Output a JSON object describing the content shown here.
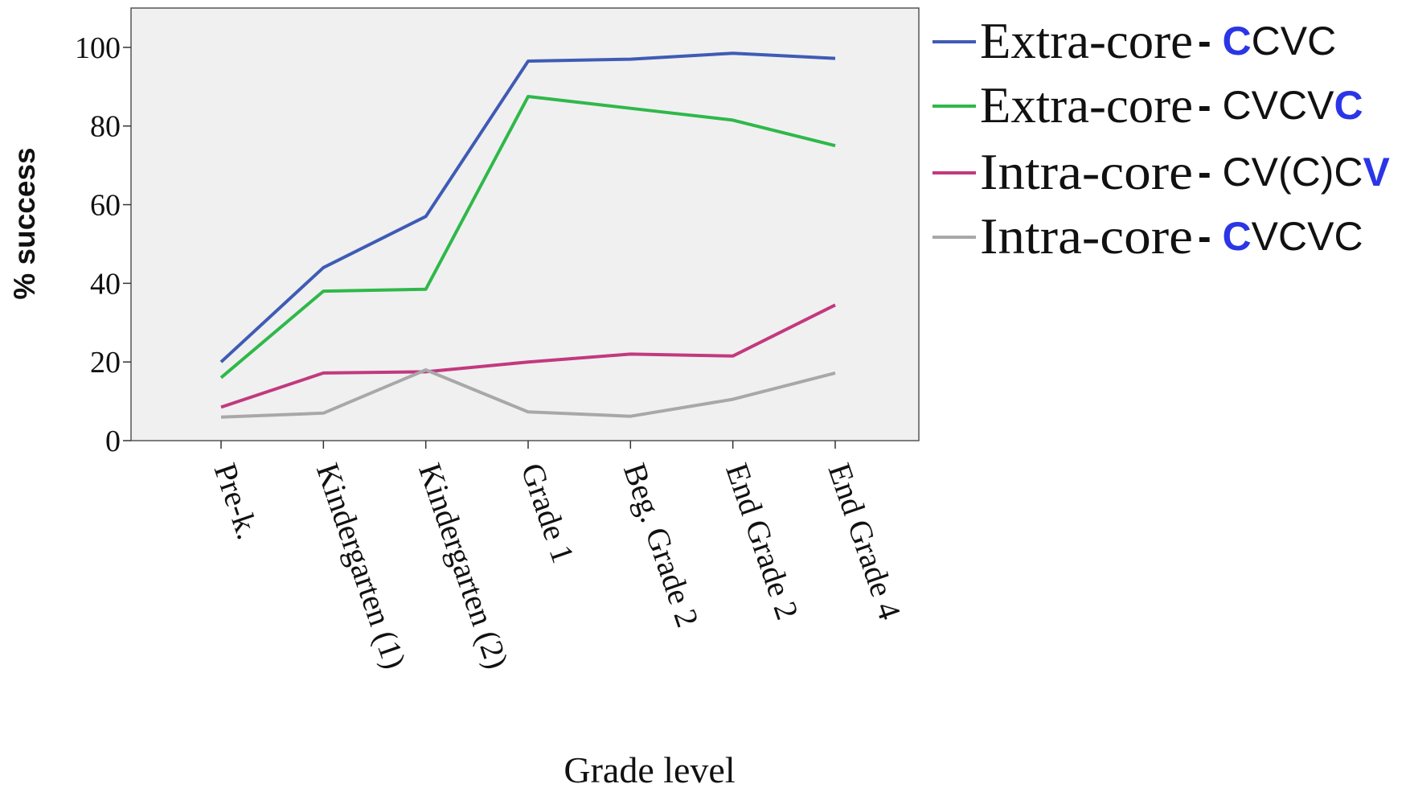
{
  "chart_data": {
    "type": "line",
    "title": "",
    "xlabel": "Grade level",
    "ylabel": "% success",
    "ylim": [
      0,
      110
    ],
    "yticks": [
      0,
      20,
      40,
      60,
      80,
      100
    ],
    "grid": false,
    "legend_placement": "right",
    "categories": [
      "Pre-k.",
      "Kindergarten (1)",
      "Kindergarten (2)",
      "Grade 1",
      "Beg. Grade 2",
      "End Grade 2",
      "End Grade 4"
    ],
    "series": [
      {
        "name": "Extra-core",
        "suffix": "- ",
        "pattern": [
          {
            "text": "C",
            "hl": true
          },
          {
            "text": "CVC",
            "hl": false
          }
        ],
        "color": "#3f5bb5",
        "values": [
          20,
          44,
          57,
          96.5,
          97,
          98.5,
          97.2
        ]
      },
      {
        "name": "Extra-core",
        "suffix": "- ",
        "pattern": [
          {
            "text": "CVCV",
            "hl": false
          },
          {
            "text": "C",
            "hl": true
          }
        ],
        "color": "#2fb84a",
        "values": [
          16,
          38,
          38.5,
          87.5,
          84.5,
          81.5,
          75
        ]
      },
      {
        "name": "Intra-core",
        "suffix": "- ",
        "pattern": [
          {
            "text": "CV(C)C",
            "hl": false
          },
          {
            "text": "V",
            "hl": true
          }
        ],
        "color": "#c2397e",
        "values": [
          8.5,
          17.2,
          17.5,
          20,
          22,
          21.5,
          34.5
        ]
      },
      {
        "name": "Intra-core",
        "suffix": "- ",
        "pattern": [
          {
            "text": "C",
            "hl": true
          },
          {
            "text": "VCVC",
            "hl": false
          }
        ],
        "color": "#a8a8a8",
        "values": [
          6,
          7,
          18,
          7.3,
          6.2,
          10.5,
          17.2
        ]
      }
    ],
    "highlight_color": "#2a36e6",
    "plot_background": "#f0f0f0"
  }
}
